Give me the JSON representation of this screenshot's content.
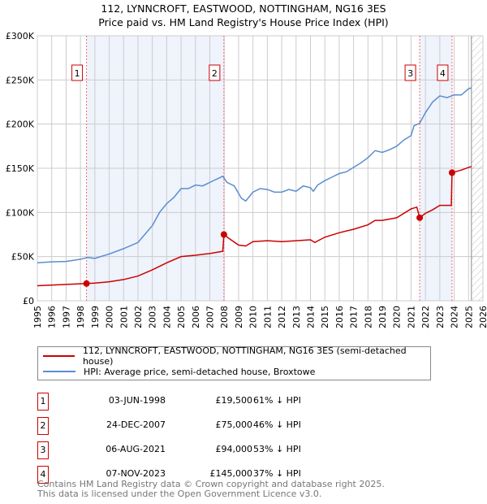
{
  "chart_data": {
    "type": "line",
    "title": "112, LYNNCROFT, EASTWOOD, NOTTINGHAM, NG16 3ES",
    "subtitle": "Price paid vs. HM Land Registry's House Price Index (HPI)",
    "xlim": [
      1995,
      2026
    ],
    "ylim": [
      0,
      300000
    ],
    "y_ticks": [
      {
        "v": 0,
        "label": "£0"
      },
      {
        "v": 50000,
        "label": "£50K"
      },
      {
        "v": 100000,
        "label": "£100K"
      },
      {
        "v": 150000,
        "label": "£150K"
      },
      {
        "v": 200000,
        "label": "£200K"
      },
      {
        "v": 250000,
        "label": "£250K"
      },
      {
        "v": 300000,
        "label": "£300K"
      }
    ],
    "x_ticks": [
      "1995",
      "1996",
      "1997",
      "1998",
      "1999",
      "2000",
      "2001",
      "2002",
      "2003",
      "2004",
      "2005",
      "2006",
      "2007",
      "2008",
      "2009",
      "2010",
      "2011",
      "2012",
      "2013",
      "2014",
      "2015",
      "2016",
      "2017",
      "2018",
      "2019",
      "2020",
      "2021",
      "2022",
      "2023",
      "2024",
      "2025",
      "2026"
    ],
    "forecast_from": 2025.2,
    "series": [
      {
        "name": "112, LYNNCROFT, EASTWOOD, NOTTINGHAM, NG16 3ES (semi-detached house)",
        "color": "#cc0000",
        "x": [
          1995,
          1998.42,
          1999,
          2000,
          2001,
          2002,
          2003,
          2004,
          2005,
          2006,
          2007,
          2007.9,
          2007.98,
          2008.3,
          2009,
          2009.5,
          2010,
          2011,
          2012,
          2013,
          2014,
          2014.3,
          2015,
          2016,
          2017,
          2018,
          2018.5,
          2019,
          2020,
          2021,
          2021.4,
          2021.6,
          2022,
          2022.5,
          2023,
          2023.8,
          2023.85,
          2024.5,
          2025,
          2025.2
        ],
        "y": [
          17000,
          19500,
          20000,
          21500,
          24000,
          28000,
          35000,
          43000,
          50000,
          51500,
          53500,
          56000,
          75000,
          71000,
          63000,
          62000,
          67000,
          68000,
          67000,
          68000,
          69000,
          66000,
          72000,
          77000,
          81000,
          86000,
          91000,
          91000,
          94000,
          104000,
          106000,
          94000,
          99000,
          103000,
          108000,
          108000,
          145000,
          148000,
          151000,
          152000
        ]
      },
      {
        "name": "HPI: Average price, semi-detached house, Broxtowe",
        "color": "#5b8dd0",
        "x": [
          1995,
          1996,
          1997,
          1998,
          1998.5,
          1999,
          2000,
          2001,
          2002,
          2003,
          2003.5,
          2004,
          2004.5,
          2005,
          2005.5,
          2006,
          2006.5,
          2007,
          2007.9,
          2008.2,
          2008.7,
          2009.2,
          2009.5,
          2010,
          2010.5,
          2011,
          2011.5,
          2012,
          2012.5,
          2013,
          2013.5,
          2014,
          2014.2,
          2014.5,
          2015,
          2015.5,
          2016,
          2016.5,
          2017,
          2017.5,
          2018,
          2018.5,
          2019,
          2019.5,
          2020,
          2020.5,
          2021,
          2021.2,
          2021.6,
          2022,
          2022.5,
          2023,
          2023.5,
          2024,
          2024.5,
          2025,
          2025.2
        ],
        "y": [
          43000,
          44000,
          44500,
          47000,
          49000,
          48000,
          53000,
          59000,
          66000,
          85000,
          100000,
          110000,
          117000,
          127000,
          127000,
          131000,
          130000,
          134000,
          141000,
          134000,
          130000,
          116000,
          113000,
          123000,
          127000,
          126000,
          123000,
          123000,
          126000,
          124000,
          130000,
          128000,
          124000,
          131000,
          136000,
          140000,
          144000,
          146000,
          151000,
          156000,
          162000,
          170000,
          168000,
          171000,
          175000,
          182000,
          187000,
          198000,
          201000,
          213000,
          225000,
          232000,
          230000,
          233000,
          233000,
          240000,
          241000
        ]
      }
    ],
    "sales": [
      {
        "num": "1",
        "date": "03-JUN-1998",
        "price": "£19,500",
        "hpi": "61% ↓ HPI",
        "x": 1998.42,
        "y": 19500
      },
      {
        "num": "2",
        "date": "24-DEC-2007",
        "price": "£75,000",
        "hpi": "46% ↓ HPI",
        "x": 2007.98,
        "y": 75000
      },
      {
        "num": "3",
        "date": "06-AUG-2021",
        "price": "£94,000",
        "hpi": "53% ↓ HPI",
        "x": 2021.6,
        "y": 94000
      },
      {
        "num": "4",
        "date": "07-NOV-2023",
        "price": "£145,000",
        "hpi": "37% ↓ HPI",
        "x": 2023.85,
        "y": 145000
      }
    ]
  },
  "footer": {
    "line1": "Contains HM Land Registry data © Crown copyright and database right 2025.",
    "line2": "This data is licensed under the Open Government Licence v3.0."
  }
}
